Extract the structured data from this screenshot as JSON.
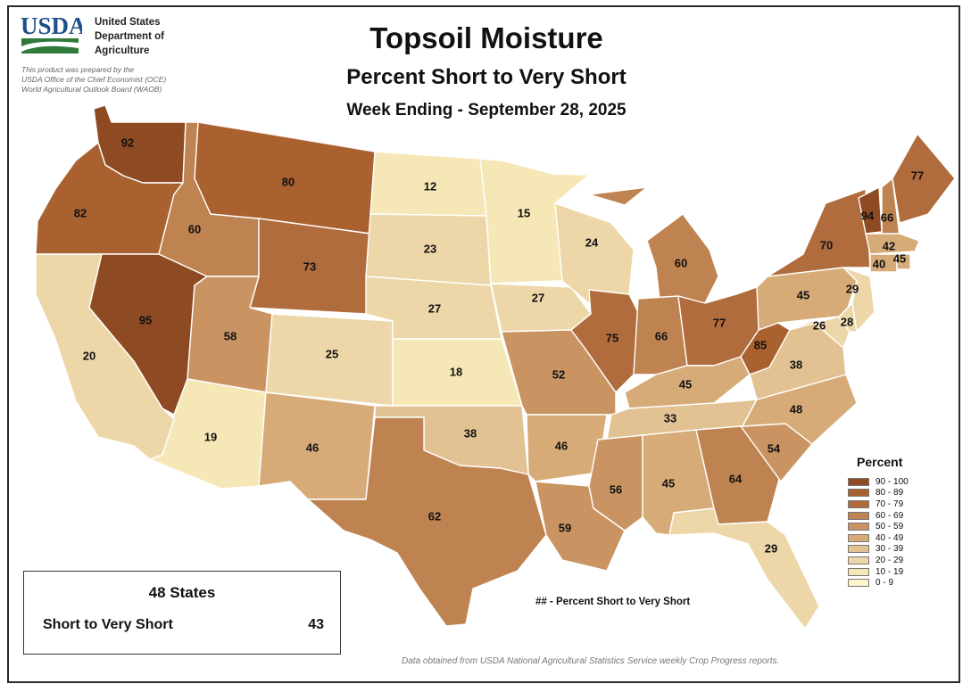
{
  "header": {
    "logo_text": "USDA",
    "department_lines": [
      "United States",
      "Department of",
      "Agriculture"
    ],
    "credit_lines": [
      "This product was prepared by the",
      "USDA Office of the Chief Economist (OCE)",
      "World Agricultural Outlook Board (WAOB)"
    ],
    "title": "Topsoil Moisture",
    "subtitle": "Percent Short to Very Short",
    "week": "Week Ending - September 28, 2025"
  },
  "legend": {
    "title": "Percent",
    "items": [
      {
        "label": "90 - 100",
        "color": "#8e4a22"
      },
      {
        "label": "80 - 89",
        "color": "#a9612f"
      },
      {
        "label": "70 - 79",
        "color": "#b06c3c"
      },
      {
        "label": "60 - 69",
        "color": "#be8350"
      },
      {
        "label": "50 - 59",
        "color": "#c99462"
      },
      {
        "label": "40 - 49",
        "color": "#d6ab78"
      },
      {
        "label": "30 - 39",
        "color": "#e2c292"
      },
      {
        "label": "20 - 29",
        "color": "#edd7a8"
      },
      {
        "label": "10 - 19",
        "color": "#f6e7b6"
      },
      {
        "label": "0 - 9",
        "color": "#fdf4cc"
      }
    ]
  },
  "states": {
    "WA": 92,
    "OR": 82,
    "CA": 20,
    "ID": 60,
    "NV": 95,
    "MT": 80,
    "WY": 73,
    "UT": 58,
    "AZ": 19,
    "CO": 25,
    "NM": 46,
    "ND": 12,
    "SD": 23,
    "NE": 27,
    "KS": 18,
    "OK": 38,
    "TX": 62,
    "MN": 15,
    "IA": 27,
    "MO": 52,
    "AR": 46,
    "LA": 59,
    "WI": 24,
    "IL": 75,
    "MI": 60,
    "IN": 66,
    "OH": 77,
    "KY": 45,
    "TN": 33,
    "MS": 56,
    "AL": 45,
    "GA": 64,
    "FL": 29,
    "SC": 54,
    "NC": 48,
    "VA": 38,
    "WV": 85,
    "MD": 26,
    "DE": 28,
    "PA": 45,
    "NJ": 29,
    "NY": 70,
    "VT": 94,
    "NH": 66,
    "ME": 77,
    "MA": 42,
    "CT": 40,
    "RI": 45
  },
  "summary": {
    "heading": "48 States",
    "label": "Short to Very Short",
    "value": "43"
  },
  "note": "## - Percent Short to Very Short",
  "source": "Data obtained from USDA National Agricultural Statistics Service weekly Crop Progress reports."
}
